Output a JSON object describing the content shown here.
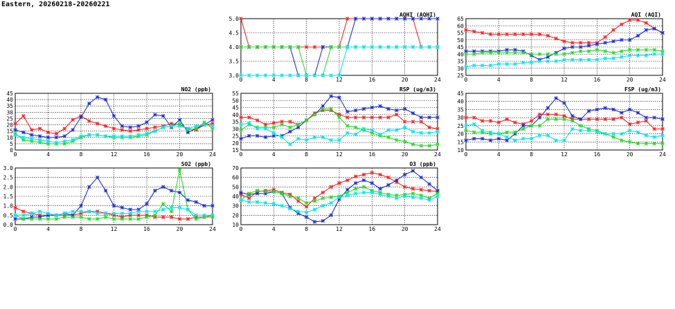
{
  "page_title": "Eastern, 20260218-20260221",
  "series_colors": {
    "red": "#ff2020",
    "blue": "#1f2fd6",
    "green": "#22dd22",
    "cyan": "#00e5ee"
  },
  "chart_data": [
    {
      "id": "aqhi",
      "type": "line",
      "title": "AQHI (AQHI)",
      "xlim": [
        0,
        24
      ],
      "ylim": [
        3.0,
        5.0
      ],
      "x_ticks": [
        0,
        4,
        8,
        12,
        16,
        20,
        24
      ],
      "y_ticks": [
        3.0,
        3.5,
        4.0,
        4.5,
        5.0
      ],
      "y_tick_labels": [
        "3.0",
        "3.5",
        "4.0",
        "4.5",
        "5.0"
      ],
      "grid": true,
      "series": [
        {
          "color": "red",
          "values": [
            5,
            4,
            4,
            4,
            4,
            4,
            4,
            4,
            4,
            4,
            4,
            4,
            4,
            5,
            5,
            5,
            5,
            5,
            5,
            5,
            5,
            5,
            4,
            4,
            4
          ]
        },
        {
          "color": "blue",
          "values": [
            4,
            4,
            4,
            4,
            4,
            4,
            4,
            3,
            3,
            3,
            4,
            4,
            4,
            4,
            5,
            5,
            5,
            5,
            5,
            5,
            5,
            5,
            5,
            5,
            5
          ]
        },
        {
          "color": "green",
          "values": [
            4,
            4,
            4,
            4,
            4,
            4,
            4,
            4,
            3,
            3,
            3,
            4,
            4,
            4,
            4,
            4,
            4,
            4,
            4,
            4,
            4,
            4,
            4,
            4,
            4
          ]
        },
        {
          "color": "cyan",
          "values": [
            3,
            3,
            3,
            3,
            3,
            3,
            3,
            3,
            3,
            3,
            3,
            3,
            3,
            4,
            4,
            4,
            4,
            4,
            4,
            4,
            4,
            4,
            4,
            4,
            4
          ]
        }
      ]
    },
    {
      "id": "aqi",
      "type": "line",
      "title": "AQI (AQI)",
      "xlim": [
        0,
        24
      ],
      "ylim": [
        25,
        65
      ],
      "x_ticks": [
        0,
        4,
        8,
        12,
        16,
        20,
        24
      ],
      "y_ticks": [
        25,
        30,
        35,
        40,
        45,
        50,
        55,
        60,
        65
      ],
      "y_tick_labels": [
        "25",
        "30",
        "35",
        "40",
        "45",
        "50",
        "55",
        "60",
        "65"
      ],
      "grid": true,
      "series": [
        {
          "color": "red",
          "values": [
            57,
            56,
            55,
            54,
            54,
            54,
            54,
            54,
            54,
            54,
            53,
            51,
            49,
            48,
            48,
            48,
            48,
            52,
            57,
            61,
            64,
            64,
            62,
            58,
            55
          ]
        },
        {
          "color": "blue",
          "values": [
            42,
            42,
            42,
            42,
            42,
            43,
            43,
            42,
            39,
            36,
            38,
            41,
            44,
            45,
            45,
            46,
            47,
            48,
            49,
            50,
            50,
            53,
            57,
            58,
            55
          ]
        },
        {
          "color": "green",
          "values": [
            40,
            40,
            41,
            41,
            41,
            41,
            41,
            41,
            40,
            40,
            40,
            40,
            40,
            41,
            42,
            42,
            43,
            42,
            41,
            42,
            43,
            43,
            43,
            43,
            42
          ]
        },
        {
          "color": "cyan",
          "values": [
            31,
            32,
            32,
            32,
            33,
            33,
            33,
            34,
            34,
            35,
            35,
            35,
            36,
            36,
            36,
            36,
            36,
            37,
            37,
            38,
            39,
            39,
            39,
            40,
            40
          ]
        }
      ]
    },
    {
      "id": "no2",
      "type": "line",
      "title": "NO2 (ppb)",
      "xlim": [
        0,
        24
      ],
      "ylim": [
        0,
        45
      ],
      "x_ticks": [
        0,
        4,
        8,
        12,
        16,
        20,
        24
      ],
      "y_ticks": [
        0,
        5,
        10,
        15,
        20,
        25,
        30,
        35,
        40,
        45
      ],
      "y_tick_labels": [
        "0",
        "5",
        "10",
        "15",
        "20",
        "25",
        "30",
        "35",
        "40",
        "45"
      ],
      "grid": true,
      "series": [
        {
          "color": "red",
          "values": [
            21,
            27,
            16,
            17,
            14,
            13,
            17,
            24,
            27,
            23,
            21,
            19,
            17,
            16,
            15,
            16,
            17,
            18,
            19,
            21,
            20,
            17,
            16,
            20,
            21
          ]
        },
        {
          "color": "blue",
          "values": [
            16,
            14,
            12,
            11,
            10,
            10,
            11,
            16,
            26,
            37,
            42,
            40,
            27,
            19,
            18,
            19,
            22,
            28,
            27,
            18,
            24,
            14,
            17,
            20,
            24
          ]
        },
        {
          "color": "green",
          "values": [
            13,
            8,
            7,
            6,
            5,
            5,
            5,
            7,
            10,
            12,
            12,
            11,
            10,
            10,
            10,
            11,
            12,
            15,
            18,
            19,
            21,
            16,
            17,
            22,
            17
          ]
        },
        {
          "color": "cyan",
          "values": [
            12,
            10,
            9,
            8,
            7,
            6,
            7,
            8,
            11,
            12,
            12,
            11,
            11,
            11,
            11,
            12,
            13,
            15,
            18,
            19,
            19,
            17,
            19,
            20,
            19
          ]
        }
      ]
    },
    {
      "id": "rsp",
      "type": "line",
      "title": "RSP (ug/m3)",
      "xlim": [
        0,
        24
      ],
      "ylim": [
        15,
        55
      ],
      "x_ticks": [
        0,
        4,
        8,
        12,
        16,
        20,
        24
      ],
      "y_ticks": [
        15,
        20,
        25,
        30,
        35,
        40,
        45,
        50,
        55
      ],
      "y_tick_labels": [
        "15",
        "20",
        "25",
        "30",
        "35",
        "40",
        "45",
        "50",
        "55"
      ],
      "grid": true,
      "series": [
        {
          "color": "red",
          "values": [
            38,
            38,
            36,
            33,
            34,
            35,
            35,
            33,
            36,
            41,
            43,
            43,
            40,
            38,
            38,
            38,
            38,
            38,
            38,
            40,
            35,
            35,
            35,
            31,
            30
          ]
        },
        {
          "color": "blue",
          "values": [
            23,
            25,
            25,
            24,
            25,
            25,
            28,
            31,
            36,
            40,
            46,
            53,
            52,
            42,
            43,
            44,
            45,
            46,
            44,
            43,
            44,
            41,
            38,
            38,
            38
          ]
        },
        {
          "color": "green",
          "values": [
            29,
            33,
            31,
            31,
            31,
            33,
            31,
            33,
            36,
            40,
            44,
            44,
            38,
            32,
            31,
            29,
            27,
            25,
            24,
            22,
            21,
            19,
            18,
            18,
            19
          ]
        },
        {
          "color": "cyan",
          "values": [
            33,
            34,
            30,
            30,
            27,
            24,
            19,
            23,
            22,
            24,
            24,
            22,
            22,
            27,
            26,
            30,
            29,
            26,
            29,
            29,
            31,
            28,
            27,
            27,
            28
          ]
        }
      ]
    },
    {
      "id": "fsp",
      "type": "line",
      "title": "FSP (ug/m3)",
      "xlim": [
        0,
        24
      ],
      "ylim": [
        10,
        45
      ],
      "x_ticks": [
        0,
        4,
        8,
        12,
        16,
        20,
        24
      ],
      "y_ticks": [
        10,
        15,
        20,
        25,
        30,
        35,
        40,
        45
      ],
      "y_tick_labels": [
        "10",
        "15",
        "20",
        "25",
        "30",
        "35",
        "40",
        "45"
      ],
      "grid": true,
      "series": [
        {
          "color": "red",
          "values": [
            30,
            30,
            28,
            28,
            27,
            29,
            27,
            26,
            28,
            32,
            32,
            32,
            31,
            29,
            29,
            29,
            29,
            29,
            29,
            30,
            26,
            27,
            28,
            23,
            23
          ]
        },
        {
          "color": "blue",
          "values": [
            16,
            17,
            17,
            16,
            17,
            16,
            20,
            25,
            25,
            30,
            36,
            42,
            39,
            31,
            29,
            34,
            35,
            36,
            35,
            33,
            35,
            33,
            30,
            30,
            29
          ]
        },
        {
          "color": "green",
          "values": [
            22,
            21,
            21,
            20,
            20,
            21,
            21,
            23,
            25,
            25,
            29,
            29,
            29,
            28,
            25,
            23,
            22,
            20,
            18,
            16,
            15,
            14,
            14,
            14,
            14
          ]
        },
        {
          "color": "cyan",
          "values": [
            25,
            26,
            22,
            21,
            20,
            18,
            16,
            17,
            17,
            19,
            19,
            16,
            16,
            23,
            22,
            22,
            21,
            20,
            20,
            20,
            22,
            21,
            19,
            18,
            19
          ]
        }
      ]
    },
    {
      "id": "so2",
      "type": "line",
      "title": "SO2 (ppb)",
      "xlim": [
        0,
        24
      ],
      "ylim": [
        0.0,
        3.0
      ],
      "x_ticks": [
        0,
        4,
        8,
        12,
        16,
        20,
        24
      ],
      "y_ticks": [
        0.0,
        0.5,
        1.0,
        1.5,
        2.0,
        2.5,
        3.0
      ],
      "y_tick_labels": [
        "0.0",
        "0.5",
        "1.0",
        "1.5",
        "2.0",
        "2.5",
        "3.0"
      ],
      "grid": true,
      "series": [
        {
          "color": "red",
          "values": [
            0.9,
            0.7,
            0.6,
            0.5,
            0.5,
            0.5,
            0.5,
            0.5,
            0.6,
            0.7,
            0.7,
            0.6,
            0.5,
            0.4,
            0.5,
            0.5,
            0.5,
            0.4,
            0.4,
            0.4,
            0.3,
            0.3,
            0.4,
            0.4,
            0.5
          ]
        },
        {
          "color": "blue",
          "values": [
            0.3,
            0.3,
            0.4,
            0.4,
            0.5,
            0.5,
            0.6,
            0.5,
            1.0,
            2.0,
            2.5,
            1.8,
            1.0,
            0.9,
            0.8,
            0.8,
            1.1,
            1.8,
            2.0,
            1.8,
            1.7,
            1.3,
            1.2,
            1.0,
            1.0
          ]
        },
        {
          "color": "green",
          "values": [
            0.5,
            0.3,
            0.3,
            0.3,
            0.3,
            0.3,
            0.4,
            0.4,
            0.4,
            0.3,
            0.3,
            0.4,
            0.3,
            0.3,
            0.3,
            0.3,
            0.4,
            0.5,
            1.1,
            0.7,
            2.9,
            0.8,
            0.3,
            0.4,
            0.4
          ]
        },
        {
          "color": "cyan",
          "values": [
            0.5,
            0.5,
            0.6,
            0.7,
            0.6,
            0.5,
            0.6,
            0.7,
            0.7,
            0.7,
            0.6,
            0.6,
            0.6,
            0.6,
            0.6,
            0.7,
            0.7,
            0.7,
            0.8,
            0.9,
            0.9,
            0.8,
            0.5,
            0.5,
            0.5
          ]
        }
      ]
    },
    {
      "id": "o3",
      "type": "line",
      "title": "O3 (ppb)",
      "xlim": [
        0,
        24
      ],
      "ylim": [
        10,
        70
      ],
      "x_ticks": [
        0,
        4,
        8,
        12,
        16,
        20,
        24
      ],
      "y_ticks": [
        10,
        20,
        30,
        40,
        50,
        60,
        70
      ],
      "y_tick_labels": [
        "10",
        "20",
        "30",
        "40",
        "50",
        "60",
        "70"
      ],
      "grid": true,
      "series": [
        {
          "color": "red",
          "values": [
            42,
            38,
            45,
            46,
            47,
            44,
            42,
            35,
            29,
            38,
            44,
            50,
            54,
            57,
            61,
            63,
            65,
            63,
            60,
            55,
            50,
            48,
            47,
            46,
            45
          ]
        },
        {
          "color": "blue",
          "values": [
            44,
            42,
            43,
            43,
            45,
            43,
            28,
            22,
            18,
            13,
            14,
            20,
            37,
            47,
            54,
            57,
            54,
            48,
            52,
            57,
            63,
            67,
            60,
            53,
            46
          ]
        },
        {
          "color": "green",
          "values": [
            36,
            43,
            46,
            45,
            45,
            43,
            40,
            38,
            33,
            35,
            38,
            39,
            40,
            44,
            48,
            50,
            46,
            44,
            42,
            41,
            42,
            43,
            41,
            38,
            43
          ]
        },
        {
          "color": "cyan",
          "values": [
            36,
            34,
            34,
            33,
            32,
            30,
            27,
            24,
            23,
            26,
            30,
            33,
            39,
            41,
            43,
            44,
            44,
            42,
            40,
            38,
            40,
            39,
            38,
            36,
            40
          ]
        }
      ]
    }
  ]
}
